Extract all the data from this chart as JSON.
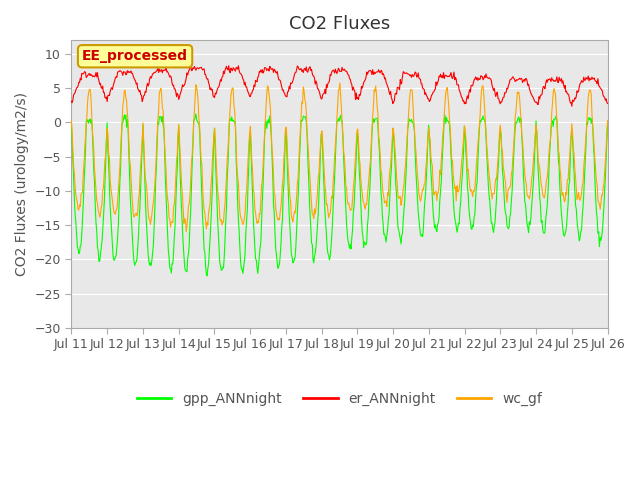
{
  "title": "CO2 Fluxes",
  "ylabel": "CO2 Fluxes (urology/m2/s)",
  "ylim": [
    -30,
    12
  ],
  "yticks": [
    -30,
    -25,
    -20,
    -15,
    -10,
    -5,
    0,
    5,
    10
  ],
  "xlabel_ticks": [
    "Jul 11",
    "Jul 12",
    "Jul 13",
    "Jul 14",
    "Jul 15",
    "Jul 16",
    "Jul 17",
    "Jul 18",
    "Jul 19",
    "Jul 20",
    "Jul 21",
    "Jul 22",
    "Jul 23",
    "Jul 24",
    "Jul 25",
    "Jul 26"
  ],
  "bg_color": "#e8e8e8",
  "fig_bg_color": "#ffffff",
  "colors": {
    "gpp": "#00ff00",
    "er": "#ff0000",
    "wc": "#ffa500"
  },
  "legend_labels": [
    "gpp_ANNnight",
    "er_ANNnight",
    "wc_gf"
  ],
  "annotation_text": "EE_processed",
  "annotation_bg": "#ffff99",
  "annotation_border": "#cc9900",
  "n_days": 15,
  "points_per_day": 48,
  "title_fontsize": 13,
  "label_fontsize": 10,
  "tick_fontsize": 9,
  "legend_fontsize": 10
}
